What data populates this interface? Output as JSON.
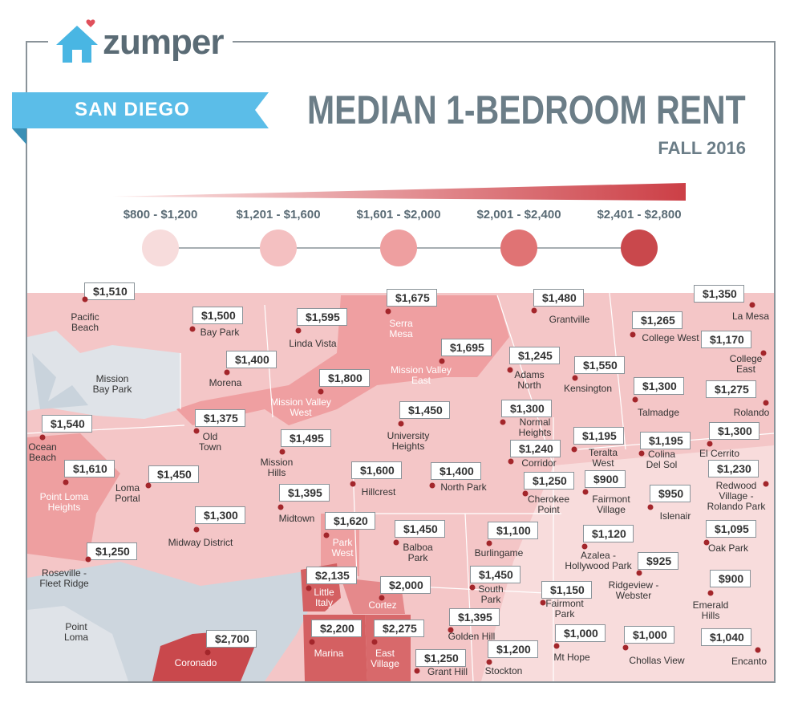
{
  "header": {
    "logo": "zumper",
    "city": "SAN DIEGO",
    "title": "MEDIAN 1-BEDROOM RENT",
    "subtitle": "FALL 2016"
  },
  "legend": [
    {
      "label": "$800 - $1,200",
      "color": "#f7dcdc"
    },
    {
      "label": "$1,201 - $1,600",
      "color": "#f4c0c1"
    },
    {
      "label": "$1,601 - $2,000",
      "color": "#ee9fa0"
    },
    {
      "label": "$2,001 - $2,400",
      "color": "#e07374"
    },
    {
      "label": "$2,401 - $2,800",
      "color": "#c9484c"
    }
  ],
  "map": {
    "areas": [
      {
        "name": "Pacific\nBeach",
        "rent": "$1,510"
      },
      {
        "name": "Bay Park",
        "rent": "$1,500"
      },
      {
        "name": "Linda Vista",
        "rent": "$1,595"
      },
      {
        "name": "Serra\nMesa",
        "rent": "$1,675"
      },
      {
        "name": "Grantville",
        "rent": "$1,480"
      },
      {
        "name": "La Mesa",
        "rent": "$1,350"
      },
      {
        "name": "College West",
        "rent": "$1,265"
      },
      {
        "name": "College\nEast",
        "rent": "$1,170"
      },
      {
        "name": "Mission\nBay Park"
      },
      {
        "name": "Morena",
        "rent": "$1,400"
      },
      {
        "name": "Mission Valley\nEast",
        "rent": "$1,695"
      },
      {
        "name": "Adams\nNorth",
        "rent": "$1,245"
      },
      {
        "name": "Kensington",
        "rent": "$1,550"
      },
      {
        "name": "Mission Valley\nWest",
        "rent": "$1,800"
      },
      {
        "name": "Talmadge",
        "rent": "$1,300"
      },
      {
        "name": "Rolando",
        "rent": "$1,275"
      },
      {
        "name": "Old\nTown",
        "rent": "$1,375"
      },
      {
        "name": "University\nHeights",
        "rent": "$1,450"
      },
      {
        "name": "Normal\nHeights",
        "rent": "$1,300"
      },
      {
        "name": "Ocean\nBeach",
        "rent": "$1,540"
      },
      {
        "name": "Mission\nHills",
        "rent": "$1,495"
      },
      {
        "name": "Teralta\nWest",
        "rent": "$1,195"
      },
      {
        "name": "Colina\nDel Sol",
        "rent": "$1,195"
      },
      {
        "name": "El Cerrito",
        "rent": "$1,300"
      },
      {
        "name": "Corridor",
        "rent": "$1,240"
      },
      {
        "name": "Point Loma\nHeights",
        "rent": "$1,610"
      },
      {
        "name": "Loma\nPortal",
        "rent": "$1,450"
      },
      {
        "name": "Hillcrest",
        "rent": "$1,600"
      },
      {
        "name": "North Park",
        "rent": "$1,400"
      },
      {
        "name": "Cherokee\nPoint",
        "rent": "$1,250"
      },
      {
        "name": "Fairmont\nVillage",
        "rent": "$900"
      },
      {
        "name": "Islenair",
        "rent": "$950"
      },
      {
        "name": "Redwood\nVillage -\nRolando Park",
        "rent": "$1,230"
      },
      {
        "name": "Midtown",
        "rent": "$1,395"
      },
      {
        "name": "Midway District",
        "rent": "$1,300"
      },
      {
        "name": "Park\nWest",
        "rent": "$1,620"
      },
      {
        "name": "Balboa\nPark",
        "rent": "$1,450"
      },
      {
        "name": "Burlingame",
        "rent": "$1,100"
      },
      {
        "name": "Azalea -\nHollywood Park",
        "rent": "$1,120"
      },
      {
        "name": "Oak Park",
        "rent": "$1,095"
      },
      {
        "name": "Roseville -\nFleet Ridge",
        "rent": "$1,250"
      },
      {
        "name": "Ridgeview -\nWebster",
        "rent": "$925"
      },
      {
        "name": "Emerald\nHills",
        "rent": "$900"
      },
      {
        "name": "Little\nItaly",
        "rent": "$2,135"
      },
      {
        "name": "Cortez",
        "rent": "$2,000"
      },
      {
        "name": "South\nPark",
        "rent": "$1,450"
      },
      {
        "name": "Fairmont\nPark",
        "rent": "$1,150"
      },
      {
        "name": "Point\nLoma"
      },
      {
        "name": "Golden Hill",
        "rent": "$1,395"
      },
      {
        "name": "Marina",
        "rent": "$2,200"
      },
      {
        "name": "East\nVillage",
        "rent": "$2,275"
      },
      {
        "name": "Coronado",
        "rent": "$2,700"
      },
      {
        "name": "Mt Hope",
        "rent": "$1,000"
      },
      {
        "name": "Chollas View",
        "rent": "$1,000"
      },
      {
        "name": "Encanto",
        "rent": "$1,040"
      },
      {
        "name": "Grant Hill",
        "rent": "$1,250"
      },
      {
        "name": "Stockton",
        "rent": "$1,200"
      }
    ]
  }
}
